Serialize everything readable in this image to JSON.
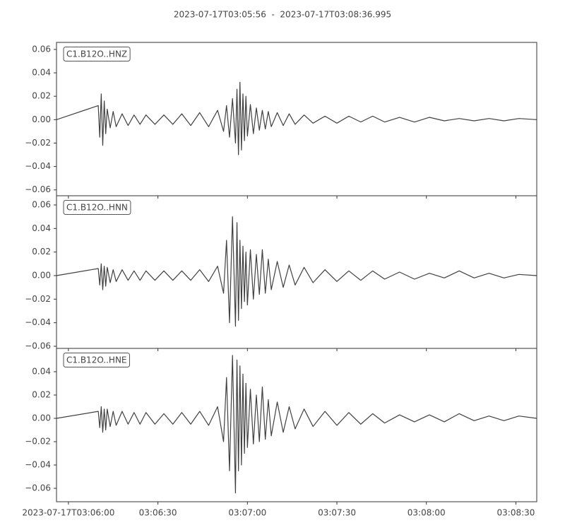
{
  "chart_data": {
    "type": "line",
    "title": "2023-07-17T03:05:56  -  2023-07-17T03:08:36.995",
    "xlim": [
      "2023-07-17T03:05:56",
      "2023-07-17T03:08:36.995"
    ],
    "xticks": [
      {
        "value": "2023-07-17T03:06:00",
        "label": "2023-07-17T03:06:00"
      },
      {
        "value": "2023-07-17T03:06:30",
        "label": "03:06:30"
      },
      {
        "value": "2023-07-17T03:07:00",
        "label": "03:07:00"
      },
      {
        "value": "2023-07-17T03:07:30",
        "label": "03:07:30"
      },
      {
        "value": "2023-07-17T03:08:00",
        "label": "03:08:00"
      },
      {
        "value": "2023-07-17T03:08:30",
        "label": "03:08:30"
      }
    ],
    "x": [
      "2023-07-17T03:05:56",
      "2023-07-17T03:06:10",
      "2023-07-17T03:06:10.5",
      "2023-07-17T03:06:11",
      "2023-07-17T03:06:11.5",
      "2023-07-17T03:06:12",
      "2023-07-17T03:06:12.5",
      "2023-07-17T03:06:13",
      "2023-07-17T03:06:14",
      "2023-07-17T03:06:15",
      "2023-07-17T03:06:16",
      "2023-07-17T03:06:18",
      "2023-07-17T03:06:20",
      "2023-07-17T03:06:22",
      "2023-07-17T03:06:24",
      "2023-07-17T03:06:26",
      "2023-07-17T03:06:29",
      "2023-07-17T03:06:32",
      "2023-07-17T03:06:35",
      "2023-07-17T03:06:38",
      "2023-07-17T03:06:41",
      "2023-07-17T03:06:44",
      "2023-07-17T03:06:47",
      "2023-07-17T03:06:50",
      "2023-07-17T03:06:52",
      "2023-07-17T03:06:53",
      "2023-07-17T03:06:54",
      "2023-07-17T03:06:55",
      "2023-07-17T03:06:56",
      "2023-07-17T03:06:56.5",
      "2023-07-17T03:06:57",
      "2023-07-17T03:06:57.5",
      "2023-07-17T03:06:58",
      "2023-07-17T03:06:58.5",
      "2023-07-17T03:06:59",
      "2023-07-17T03:06:59.5",
      "2023-07-17T03:07:00",
      "2023-07-17T03:07:01",
      "2023-07-17T03:07:02",
      "2023-07-17T03:07:03",
      "2023-07-17T03:07:04",
      "2023-07-17T03:07:05",
      "2023-07-17T03:07:06",
      "2023-07-17T03:07:07",
      "2023-07-17T03:07:08",
      "2023-07-17T03:07:10",
      "2023-07-17T03:07:12",
      "2023-07-17T03:07:14",
      "2023-07-17T03:07:16",
      "2023-07-17T03:07:19",
      "2023-07-17T03:07:22",
      "2023-07-17T03:07:26",
      "2023-07-17T03:07:30",
      "2023-07-17T03:07:34",
      "2023-07-17T03:07:38",
      "2023-07-17T03:07:42",
      "2023-07-17T03:07:46",
      "2023-07-17T03:07:51",
      "2023-07-17T03:07:56",
      "2023-07-17T03:08:01",
      "2023-07-17T03:08:06",
      "2023-07-17T03:08:11",
      "2023-07-17T03:08:16",
      "2023-07-17T03:08:21",
      "2023-07-17T03:08:26",
      "2023-07-17T03:08:31",
      "2023-07-17T03:08:36.995"
    ],
    "series": [
      {
        "name": "C1.B12O..HNZ",
        "color": "#404040",
        "ylim": [
          -0.065,
          0.066
        ],
        "yticks": [
          {
            "value": -0.06,
            "label": "−0.06"
          },
          {
            "value": -0.04,
            "label": "−0.04"
          },
          {
            "value": -0.02,
            "label": "−0.02"
          },
          {
            "value": 0,
            "label": "0.00"
          },
          {
            "value": 0.02,
            "label": "0.02"
          },
          {
            "value": 0.04,
            "label": "0.04"
          },
          {
            "value": 0.06,
            "label": "0.06"
          }
        ],
        "values": [
          0,
          0.012,
          -0.015,
          0.022,
          -0.022,
          0.016,
          -0.012,
          0.009,
          -0.007,
          0.007,
          -0.006,
          0.005,
          -0.005,
          0.004,
          -0.004,
          0.004,
          -0.004,
          0.004,
          -0.004,
          0.005,
          -0.005,
          0.006,
          -0.006,
          0.008,
          -0.01,
          0.012,
          -0.015,
          0.018,
          -0.02,
          0.026,
          -0.03,
          0.032,
          -0.026,
          0.022,
          -0.018,
          0.02,
          -0.014,
          0.013,
          -0.012,
          0.01,
          -0.009,
          0.008,
          -0.008,
          0.007,
          -0.006,
          0.006,
          -0.005,
          0.005,
          -0.004,
          0.004,
          -0.003,
          0.003,
          -0.003,
          0.003,
          -0.002,
          0.003,
          -0.002,
          0.002,
          -0.002,
          0.002,
          -0.001,
          0.001,
          -0.001,
          0.001,
          -0.001,
          0.001,
          0
        ]
      },
      {
        "name": "C1.B12O..HNN",
        "color": "#404040",
        "ylim": [
          -0.0618,
          0.0678
        ],
        "yticks": [
          {
            "value": -0.06,
            "label": "−0.06"
          },
          {
            "value": -0.04,
            "label": "−0.04"
          },
          {
            "value": -0.02,
            "label": "−0.02"
          },
          {
            "value": 0,
            "label": "0.00"
          },
          {
            "value": 0.02,
            "label": "0.02"
          },
          {
            "value": 0.04,
            "label": "0.04"
          },
          {
            "value": 0.06,
            "label": "0.06"
          }
        ],
        "values": [
          0,
          0.006,
          -0.008,
          0.01,
          -0.012,
          0.008,
          -0.009,
          0.007,
          -0.006,
          0.005,
          -0.005,
          0.005,
          -0.004,
          0.004,
          -0.004,
          0.004,
          -0.004,
          0.004,
          -0.004,
          0.004,
          -0.004,
          0.005,
          -0.005,
          0.008,
          -0.015,
          0.03,
          -0.04,
          0.05,
          -0.043,
          0.045,
          -0.038,
          0.03,
          -0.028,
          0.025,
          -0.022,
          0.02,
          -0.025,
          0.022,
          -0.02,
          0.018,
          -0.016,
          0.022,
          -0.015,
          0.014,
          -0.012,
          0.012,
          -0.01,
          0.009,
          -0.008,
          0.007,
          -0.006,
          0.005,
          -0.005,
          0.004,
          -0.004,
          0.004,
          -0.003,
          0.003,
          -0.003,
          0.002,
          -0.002,
          0.004,
          -0.002,
          0.002,
          -0.002,
          0.001,
          0
        ]
      },
      {
        "name": "C1.B12O..HNE",
        "color": "#404040",
        "ylim": [
          -0.0715,
          0.06
        ],
        "yticks": [
          {
            "value": -0.06,
            "label": "−0.06"
          },
          {
            "value": -0.04,
            "label": "−0.04"
          },
          {
            "value": -0.02,
            "label": "−0.02"
          },
          {
            "value": 0,
            "label": "0.00"
          },
          {
            "value": 0.02,
            "label": "0.02"
          },
          {
            "value": 0.04,
            "label": "0.04"
          }
        ],
        "values": [
          0,
          0.006,
          -0.008,
          0.01,
          -0.012,
          0.008,
          -0.01,
          0.008,
          -0.007,
          0.006,
          -0.006,
          0.006,
          -0.005,
          0.005,
          -0.005,
          0.005,
          -0.005,
          0.004,
          -0.005,
          0.005,
          -0.005,
          0.006,
          -0.006,
          0.01,
          -0.02,
          0.035,
          -0.045,
          0.054,
          -0.064,
          0.05,
          -0.045,
          0.045,
          -0.04,
          0.038,
          -0.03,
          0.03,
          -0.025,
          0.025,
          -0.022,
          0.02,
          -0.02,
          0.027,
          -0.018,
          0.016,
          -0.015,
          0.014,
          -0.012,
          0.01,
          -0.009,
          0.008,
          -0.007,
          0.006,
          -0.006,
          0.005,
          -0.005,
          0.004,
          -0.004,
          0.003,
          -0.003,
          0.003,
          -0.003,
          0.004,
          -0.002,
          0.002,
          -0.002,
          0.002,
          0
        ]
      }
    ]
  }
}
